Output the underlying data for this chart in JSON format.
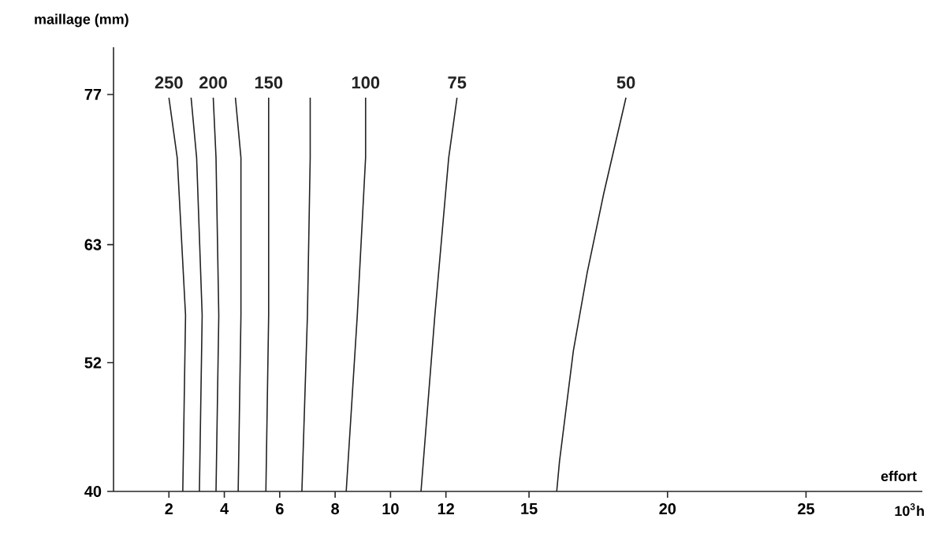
{
  "chart_data": {
    "type": "line",
    "ylabel": "maillage (mm)",
    "xlabel": "effort",
    "annotations": [
      "10$^{3}$h"
    ],
    "xlim": [
      0,
      29.2
    ],
    "ylim": [
      40,
      81.4
    ],
    "xticks": [
      2,
      4,
      6,
      8,
      10,
      12,
      15,
      20,
      25
    ],
    "yticks": [
      40,
      52,
      63,
      77
    ],
    "marker": "none",
    "line_style": "solid",
    "grid": false,
    "series": [
      {
        "name": "250",
        "color": "#222222",
        "x": [
          2.5,
          2.6,
          2.3,
          2.0
        ],
        "values": [
          40,
          56.4,
          71.1,
          76.7
        ]
      },
      {
        "color": "#222222",
        "x": [
          3.1,
          3.2,
          3.0,
          2.8
        ],
        "values": [
          40,
          56.4,
          71.1,
          76.7
        ]
      },
      {
        "name": "200",
        "color": "#222222",
        "x": [
          3.7,
          3.8,
          3.7,
          3.6
        ],
        "values": [
          40,
          56.4,
          71.1,
          76.7
        ]
      },
      {
        "color": "#222222",
        "x": [
          4.5,
          4.6,
          4.6,
          4.4
        ],
        "values": [
          40,
          56.4,
          71.1,
          76.7
        ]
      },
      {
        "name": "150",
        "color": "#222222",
        "x": [
          5.5,
          5.6,
          5.6,
          5.6
        ],
        "values": [
          40,
          56.4,
          71.1,
          76.7
        ]
      },
      {
        "color": "#222222",
        "x": [
          6.8,
          7.0,
          7.1,
          7.1
        ],
        "values": [
          40,
          56.4,
          71.1,
          76.7
        ]
      },
      {
        "name": "100",
        "color": "#222222",
        "x": [
          8.4,
          8.8,
          9.1,
          9.1
        ],
        "values": [
          40,
          56.4,
          71.1,
          76.7
        ]
      },
      {
        "name": "75",
        "color": "#222222",
        "x": [
          11.1,
          11.6,
          12.1,
          12.4
        ],
        "values": [
          40,
          56.4,
          71.1,
          76.7
        ]
      },
      {
        "name": "50",
        "color": "#222222",
        "x": [
          16.0,
          16.1,
          16.6,
          17.1,
          17.7,
          18.5
        ],
        "values": [
          40,
          42.8,
          53.1,
          60.4,
          67.8,
          76.7
        ]
      }
    ]
  }
}
